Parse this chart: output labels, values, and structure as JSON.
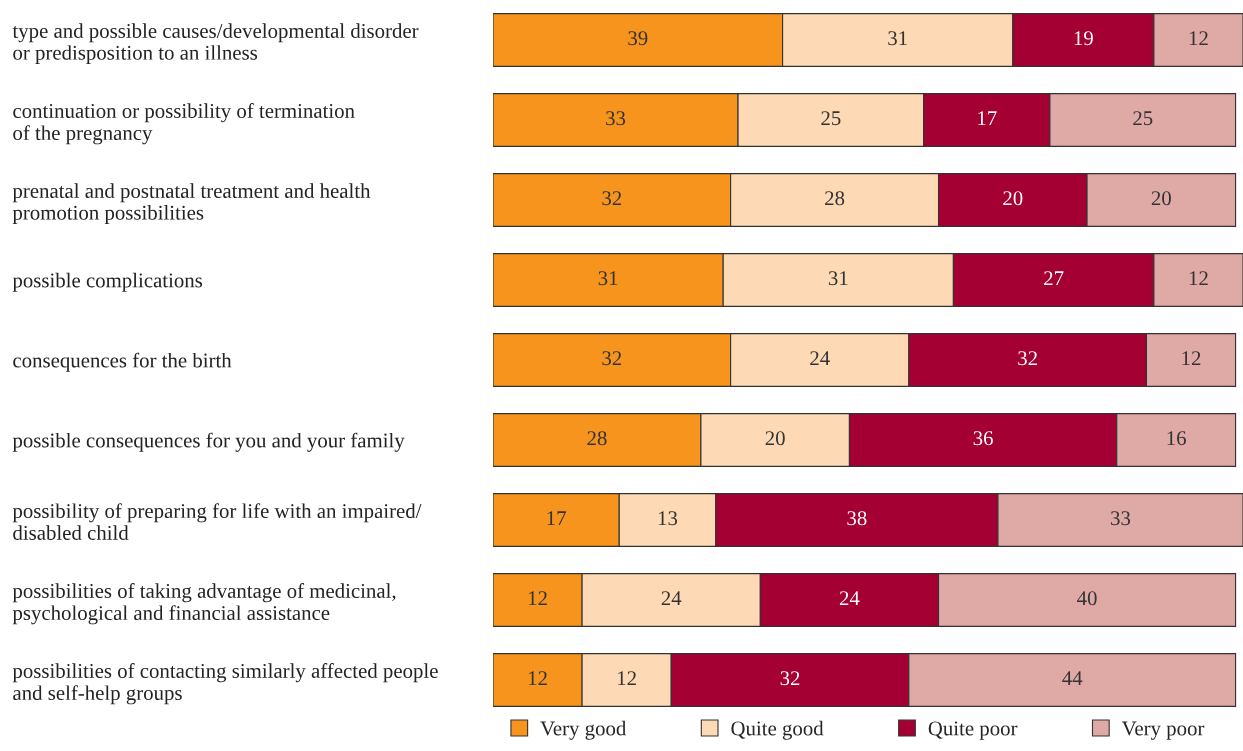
{
  "chart_data": {
    "type": "bar",
    "orientation": "horizontal",
    "stacked": true,
    "data_labels": true,
    "legend": "bottom",
    "grid": false,
    "categories": [
      "type and possible causes/developmental disorder\nor predisposition to an illness",
      "continuation or possibility of termination\nof the pregnancy",
      "prenatal and postnatal treatment and health\npromotion possibilities",
      "possible complications",
      "consequences for the birth",
      "possible consequences for you and your family",
      "possibility of preparing for life with an impaired/\ndisabled child",
      "possibilities of taking advantage of medicinal,\npsychological and financial assistance",
      "possibilities of contacting similarly affected people\nand self-help groups"
    ],
    "series": [
      {
        "name": "Very good",
        "color": "#f7941d",
        "values": [
          39,
          33,
          32,
          31,
          32,
          28,
          17,
          12,
          12
        ]
      },
      {
        "name": "Quite good",
        "color": "#fdd9b5",
        "values": [
          31,
          25,
          28,
          31,
          24,
          20,
          13,
          24,
          12
        ]
      },
      {
        "name": "Quite poor",
        "color": "#a50034",
        "values": [
          19,
          17,
          20,
          27,
          32,
          36,
          38,
          24,
          32
        ]
      },
      {
        "name": "Very poor",
        "color": "#dfa9a6",
        "values": [
          12,
          25,
          20,
          12,
          12,
          16,
          33,
          40,
          44
        ]
      }
    ]
  }
}
